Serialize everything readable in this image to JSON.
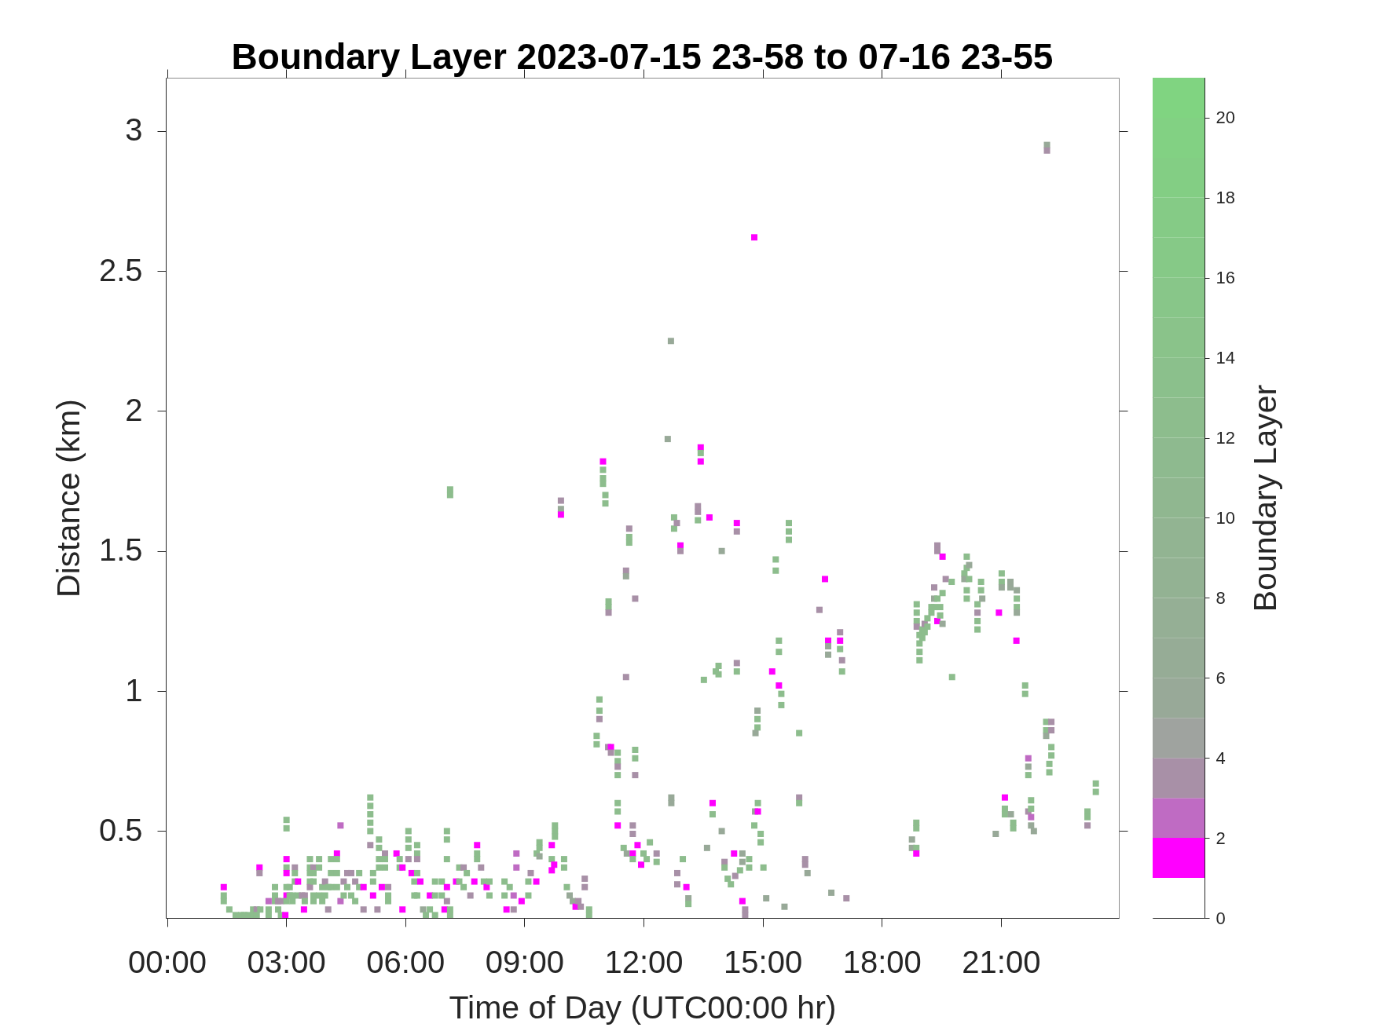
{
  "chart_data": {
    "type": "scatter",
    "title": "Boundary Layer 2023-07-15 23-58 to 07-16 23-55",
    "xlabel": "Time of Day (UTC00:00 hr)",
    "ylabel": "Distance (km)",
    "clabel": "Boundary Layer",
    "marker": "square",
    "xlim": [
      -0.03,
      23.97
    ],
    "xticks": [
      {
        "value": 0,
        "label": "00:00"
      },
      {
        "value": 3,
        "label": "03:00"
      },
      {
        "value": 6,
        "label": "06:00"
      },
      {
        "value": 9,
        "label": "09:00"
      },
      {
        "value": 12,
        "label": "12:00"
      },
      {
        "value": 15,
        "label": "15:00"
      },
      {
        "value": 18,
        "label": "18:00"
      },
      {
        "value": 21,
        "label": "21:00"
      }
    ],
    "ylim": [
      0.19,
      3.19
    ],
    "yticks": [
      0.5,
      1,
      1.5,
      2,
      2.5,
      3
    ],
    "clim": [
      0,
      21
    ],
    "cticks": [
      0,
      2,
      4,
      6,
      8,
      10,
      12,
      14,
      16,
      18,
      20
    ],
    "x": [
      1.43,
      1.43,
      1.43,
      1.57,
      1.73,
      1.87,
      1.95,
      2.04,
      2.17,
      2.17,
      2.26,
      2.26,
      2.35,
      2.33,
      2.33,
      2.56,
      2.56,
      2.56,
      2.72,
      2.72,
      2.72,
      2.8,
      2.87,
      2.8,
      2.87,
      2.98,
      3.01,
      3.01,
      3.01,
      3.01,
      3.01,
      3.01,
      3.01,
      3.01,
      3.09,
      3.09,
      3.16,
      3.16,
      3.22,
      3.22,
      3.22,
      3.3,
      3.3,
      3.4,
      3.47,
      3.47,
      3.45,
      3.6,
      3.6,
      3.6,
      3.6,
      3.6,
      3.69,
      3.69,
      3.69,
      3.69,
      3.69,
      3.83,
      3.83,
      3.83,
      3.91,
      3.91,
      3.98,
      3.98,
      4.06,
      4.06,
      4.13,
      4.13,
      4.13,
      4.28,
      4.28,
      4.28,
      4.28,
      4.37,
      4.37,
      4.45,
      4.45,
      4.54,
      4.54,
      4.64,
      4.64,
      4.74,
      4.74,
      4.84,
      4.84,
      4.95,
      4.95,
      5.12,
      5.12,
      5.12,
      5.12,
      5.12,
      5.12,
      5.19,
      5.19,
      5.19,
      5.34,
      5.34,
      5.34,
      5.34,
      5.3,
      5.41,
      5.49,
      5.49,
      5.49,
      5.57,
      5.57,
      5.57,
      5.78,
      5.86,
      5.86,
      5.93,
      5.93,
      6.08,
      6.08,
      6.08,
      6.08,
      6.16,
      6.23,
      6.23,
      6.3,
      6.3,
      6.3,
      6.3,
      6.3,
      6.38,
      6.45,
      6.52,
      6.62,
      6.62,
      6.75,
      6.75,
      6.75,
      6.92,
      6.92,
      6.99,
      7.05,
      7.05,
      7.05,
      7.05,
      7.05,
      7.13,
      7.13,
      7.13,
      7.13,
      7.28,
      7.36,
      7.36,
      7.47,
      7.47,
      7.55,
      7.64,
      7.74,
      7.81,
      7.81,
      7.81,
      7.91,
      7.98,
      8.05,
      8.12,
      8.12,
      8.5,
      8.5,
      8.55,
      8.63,
      8.73,
      8.73,
      8.8,
      8.8,
      8.93,
      9.1,
      9.1,
      9.16,
      9.3,
      9.31,
      9.38,
      9.38,
      9.38,
      9.69,
      9.69,
      9.75,
      9.69,
      9.77,
      9.77,
      9.77,
      10.0,
      10.0,
      10.07,
      10.14,
      10.22,
      10.29,
      10.36,
      10.42,
      10.52,
      10.52,
      10.63,
      10.63,
      9.92,
      9.92,
      9.92,
      10.82,
      10.82,
      10.89,
      10.89,
      10.89,
      10.98,
      10.98,
      10.98,
      10.98,
      11.04,
      11.04,
      11.12,
      11.12,
      11.12,
      11.11,
      11.18,
      11.18,
      11.35,
      11.35,
      11.35,
      11.35,
      11.35,
      11.35,
      11.35,
      11.56,
      11.56,
      11.56,
      11.5,
      11.58,
      11.64,
      11.64,
      11.64,
      11.73,
      11.73,
      11.73,
      11.73,
      11.79,
      11.79,
      11.79,
      11.79,
      11.85,
      11.94,
      12.0,
      12.08,
      12.16,
      12.33,
      12.33,
      12.61,
      12.69,
      12.7,
      12.7,
      12.77,
      12.77,
      12.84,
      12.85,
      12.85,
      12.93,
      12.93,
      12.99,
      13.08,
      13.13,
      13.13,
      13.37,
      13.37,
      13.37,
      13.44,
      13.44,
      13.44,
      13.52,
      13.6,
      13.66,
      13.74,
      13.74,
      13.82,
      13.89,
      13.89,
      13.97,
      13.97,
      14.04,
      14.04,
      14.12,
      14.2,
      14.28,
      14.31,
      14.35,
      14.35,
      14.35,
      14.35,
      14.43,
      14.49,
      14.49,
      14.49,
      14.56,
      14.56,
      14.66,
      14.66,
      14.79,
      14.79,
      14.87,
      14.87,
      14.87,
      14.82,
      14.81,
      14.88,
      14.88,
      14.95,
      14.95,
      15.02,
      15.09,
      15.24,
      15.33,
      15.33,
      15.41,
      15.41,
      15.41,
      15.47,
      15.47,
      15.55,
      15.66,
      15.66,
      15.66,
      15.92,
      15.92,
      15.92,
      16.07,
      16.07,
      16.13,
      16.43,
      16.57,
      16.65,
      16.65,
      16.65,
      16.73,
      16.95,
      16.95,
      16.95,
      17.0,
      17.0,
      17.11,
      18.76,
      18.76,
      18.87,
      18.87,
      18.87,
      18.87,
      18.88,
      18.88,
      18.88,
      18.88,
      18.95,
      18.95,
      18.95,
      18.95,
      19.02,
      19.02,
      19.08,
      19.08,
      19.15,
      19.15,
      19.25,
      19.25,
      19.32,
      19.32,
      19.32,
      19.4,
      19.4,
      19.4,
      19.4,
      19.47,
      19.47,
      19.53,
      19.53,
      19.53,
      19.61,
      19.76,
      19.77,
      20.08,
      20.08,
      20.14,
      20.14,
      20.2,
      20.2,
      20.14,
      20.14,
      20.41,
      20.41,
      20.41,
      20.41,
      20.5,
      20.5,
      20.53,
      20.87,
      20.95,
      21.02,
      21.02,
      21.02,
      21.1,
      21.1,
      21.1,
      21.25,
      21.31,
      21.31,
      21.24,
      21.24,
      21.39,
      21.4,
      21.4,
      21.4,
      21.4,
      21.61,
      21.61,
      21.69,
      21.69,
      21.69,
      21.69,
      21.76,
      21.76,
      21.76,
      21.76,
      21.83,
      22.14,
      22.14,
      22.14,
      22.16,
      22.16,
      22.22,
      22.22,
      22.27,
      22.27,
      22.27,
      22.27,
      23.18,
      23.18,
      23.18,
      23.39,
      23.39
    ],
    "values": [
      0.3,
      0.27,
      0.25,
      0.22,
      0.2,
      0.2,
      0.2,
      0.2,
      0.22,
      0.2,
      0.22,
      0.2,
      0.22,
      0.37,
      0.35,
      0.25,
      0.22,
      0.2,
      0.3,
      0.27,
      0.25,
      0.25,
      0.25,
      0.22,
      0.2,
      0.2,
      0.54,
      0.51,
      0.4,
      0.37,
      0.35,
      0.3,
      0.27,
      0.25,
      0.3,
      0.27,
      0.27,
      0.25,
      0.37,
      0.35,
      0.32,
      0.32,
      0.27,
      0.27,
      0.27,
      0.25,
      0.22,
      0.4,
      0.37,
      0.35,
      0.32,
      0.3,
      0.37,
      0.35,
      0.32,
      0.27,
      0.25,
      0.4,
      0.37,
      0.27,
      0.3,
      0.25,
      0.32,
      0.27,
      0.3,
      0.22,
      0.4,
      0.35,
      0.3,
      0.42,
      0.4,
      0.35,
      0.3,
      0.52,
      0.25,
      0.32,
      0.27,
      0.35,
      0.3,
      0.35,
      0.27,
      0.32,
      0.25,
      0.35,
      0.3,
      0.3,
      0.22,
      0.62,
      0.59,
      0.56,
      0.53,
      0.5,
      0.45,
      0.27,
      0.32,
      0.35,
      0.47,
      0.44,
      0.4,
      0.37,
      0.22,
      0.3,
      0.42,
      0.4,
      0.37,
      0.3,
      0.27,
      0.25,
      0.42,
      0.4,
      0.37,
      0.37,
      0.22,
      0.5,
      0.47,
      0.44,
      0.4,
      0.35,
      0.32,
      0.27,
      0.45,
      0.42,
      0.4,
      0.35,
      0.27,
      0.32,
      0.22,
      0.2,
      0.27,
      0.22,
      0.32,
      0.27,
      0.2,
      0.32,
      0.27,
      0.22,
      0.5,
      0.47,
      0.4,
      0.3,
      0.25,
      1.72,
      1.7,
      0.22,
      0.2,
      0.32,
      0.37,
      0.32,
      0.37,
      0.3,
      0.35,
      0.27,
      0.32,
      0.45,
      0.42,
      0.4,
      0.37,
      0.32,
      0.3,
      0.32,
      0.27,
      0.32,
      0.27,
      0.22,
      0.3,
      0.27,
      0.22,
      0.42,
      0.37,
      0.25,
      0.32,
      0.27,
      0.35,
      0.32,
      0.42,
      0.46,
      0.44,
      0.41,
      0.45,
      0.4,
      0.38,
      0.36,
      0.52,
      0.5,
      0.48,
      0.4,
      0.37,
      0.3,
      0.27,
      0.25,
      0.23,
      0.25,
      0.23,
      0.33,
      0.3,
      0.22,
      0.2,
      1.68,
      1.65,
      1.63,
      0.84,
      0.81,
      0.97,
      0.93,
      0.9,
      1.82,
      1.79,
      1.76,
      1.74,
      1.7,
      1.67,
      1.32,
      1.3,
      1.28,
      0.8,
      0.8,
      0.78,
      0.78,
      0.75,
      0.73,
      0.7,
      0.6,
      0.57,
      0.52,
      1.43,
      1.41,
      1.05,
      0.44,
      0.42,
      1.58,
      1.55,
      1.53,
      0.52,
      0.49,
      0.42,
      0.4,
      1.33,
      0.79,
      0.76,
      0.7,
      0.45,
      0.38,
      0.42,
      0.4,
      0.46,
      0.42,
      0.39,
      1.9,
      2.25,
      0.62,
      0.6,
      1.62,
      1.58,
      1.6,
      0.35,
      0.31,
      1.52,
      1.5,
      0.4,
      0.3,
      0.26,
      0.24,
      1.66,
      1.64,
      1.61,
      1.87,
      1.85,
      1.82,
      1.04,
      0.44,
      1.62,
      0.6,
      0.56,
      1.07,
      1.09,
      1.06,
      1.5,
      0.5,
      0.39,
      0.37,
      0.33,
      0.31,
      0.42,
      0.34,
      1.6,
      1.57,
      1.1,
      1.07,
      0.36,
      0.42,
      0.39,
      0.25,
      0.22,
      0.2,
      0.4,
      0.37,
      2.62,
      0.52,
      0.93,
      0.9,
      0.87,
      0.85,
      0.57,
      0.57,
      0.6,
      0.49,
      0.46,
      0.37,
      0.26,
      1.07,
      1.47,
      1.43,
      1.18,
      1.14,
      1.02,
      0.99,
      0.95,
      0.23,
      1.6,
      1.57,
      1.54,
      0.85,
      0.62,
      0.6,
      0.4,
      0.38,
      0.35,
      1.29,
      1.4,
      1.18,
      1.16,
      1.13,
      0.28,
      1.21,
      1.18,
      1.15,
      1.11,
      1.07,
      0.26,
      0.47,
      0.44,
      0.44,
      0.42,
      0.53,
      0.51,
      1.31,
      1.28,
      1.25,
      1.23,
      1.2,
      1.17,
      1.14,
      1.11,
      1.22,
      1.19,
      1.24,
      1.21,
      1.26,
      1.23,
      1.3,
      1.28,
      1.37,
      1.33,
      1.3,
      1.52,
      1.5,
      1.33,
      1.25,
      1.3,
      1.27,
      1.48,
      1.35,
      1.24,
      1.4,
      1.39,
      1.05,
      1.42,
      1.4,
      1.48,
      1.44,
      1.45,
      1.4,
      1.36,
      1.33,
      1.31,
      1.28,
      1.25,
      1.22,
      1.39,
      1.36,
      1.33,
      0.49,
      1.28,
      1.42,
      1.39,
      1.37,
      0.62,
      0.58,
      0.56,
      0.56,
      0.53,
      0.51,
      1.39,
      1.37,
      1.18,
      1.36,
      1.33,
      1.3,
      1.28,
      1.02,
      0.99,
      0.76,
      0.73,
      0.7,
      0.57,
      0.61,
      0.58,
      0.55,
      0.52,
      0.5,
      0.89,
      0.86,
      0.84,
      2.95,
      2.93,
      0.74,
      0.71,
      0.89,
      0.86,
      0.8,
      0.77,
      0.57,
      0.55,
      0.52,
      0.67,
      0.64
    ],
    "cvalues": [
      1,
      12,
      12,
      12,
      12,
      12,
      12,
      12,
      12,
      12,
      3,
      12,
      12,
      1,
      3,
      2,
      12,
      12,
      12,
      12,
      12,
      3,
      3,
      12,
      12,
      1,
      12,
      12,
      1,
      12,
      1,
      12,
      1,
      12,
      12,
      12,
      12,
      12,
      3,
      12,
      12,
      1,
      12,
      3,
      3,
      12,
      1,
      12,
      12,
      12,
      12,
      3,
      3,
      12,
      12,
      12,
      12,
      12,
      12,
      12,
      12,
      12,
      3,
      12,
      12,
      3,
      12,
      12,
      12,
      1,
      12,
      12,
      12,
      2,
      2,
      3,
      12,
      3,
      12,
      3,
      12,
      3,
      12,
      12,
      12,
      1,
      3,
      12,
      12,
      12,
      12,
      12,
      3,
      1,
      12,
      12,
      12,
      12,
      12,
      12,
      3,
      1,
      3,
      12,
      12,
      3,
      12,
      12,
      1,
      12,
      12,
      1,
      1,
      12,
      12,
      12,
      3,
      1,
      12,
      12,
      12,
      12,
      3,
      12,
      12,
      1,
      5,
      12,
      1,
      12,
      12,
      12,
      12,
      12,
      12,
      1,
      12,
      12,
      12,
      1,
      3,
      12,
      12,
      12,
      12,
      1,
      12,
      12,
      3,
      12,
      12,
      3,
      1,
      1,
      12,
      12,
      3,
      12,
      1,
      12,
      12,
      12,
      12,
      1,
      12,
      2,
      3,
      2,
      2,
      1,
      12,
      12,
      3,
      1,
      12,
      12,
      12,
      5,
      1,
      12,
      1,
      1,
      12,
      12,
      12,
      12,
      12,
      12,
      5,
      5,
      1,
      3,
      3,
      3,
      3,
      12,
      12,
      3,
      5,
      1,
      12,
      12,
      12,
      12,
      3,
      1,
      12,
      12,
      12,
      12,
      12,
      12,
      12,
      3,
      3,
      1,
      3,
      12,
      12,
      3,
      12,
      12,
      12,
      1,
      3,
      5,
      3,
      12,
      5,
      3,
      12,
      12,
      3,
      3,
      1,
      12,
      3,
      12,
      12,
      3,
      1,
      1,
      12,
      12,
      12,
      3,
      12,
      5,
      5,
      5,
      5,
      12,
      12,
      3,
      3,
      3,
      1,
      3,
      12,
      1,
      5,
      12,
      3,
      3,
      12,
      1,
      12,
      1,
      12,
      5,
      1,
      1,
      12,
      12,
      12,
      12,
      5,
      5,
      3,
      12,
      12,
      12,
      1,
      3,
      1,
      3,
      3,
      12,
      12,
      5,
      5,
      1,
      3,
      3,
      12,
      12,
      1,
      12,
      5,
      12,
      12,
      5,
      5,
      1,
      12,
      12,
      12,
      12,
      5,
      1,
      12,
      12,
      12,
      12,
      1,
      12,
      12,
      5,
      12,
      12,
      12,
      12,
      3,
      12,
      3,
      3,
      5,
      3,
      1,
      1,
      5,
      5,
      5,
      3,
      1,
      12,
      3,
      12,
      3,
      5,
      5,
      12,
      1,
      12,
      12,
      12,
      12,
      12,
      3,
      12,
      12,
      12,
      12,
      12,
      12,
      3,
      12,
      12,
      12,
      12,
      12,
      3,
      5,
      12,
      3,
      3,
      12,
      1,
      12,
      12,
      1,
      12,
      5,
      3,
      12,
      12,
      12,
      5,
      12,
      12,
      5,
      12,
      12,
      12,
      12,
      3,
      12,
      12,
      12,
      12,
      5,
      5,
      1,
      12,
      12,
      5,
      1,
      12,
      12,
      5,
      12,
      12,
      5,
      5,
      1,
      5,
      12,
      12,
      5,
      12,
      12,
      2,
      5,
      12,
      3,
      12,
      12,
      2,
      5,
      5,
      12,
      12,
      5,
      5,
      3,
      12,
      12,
      3,
      3,
      12,
      12,
      12,
      12,
      3,
      12,
      12
    ]
  }
}
